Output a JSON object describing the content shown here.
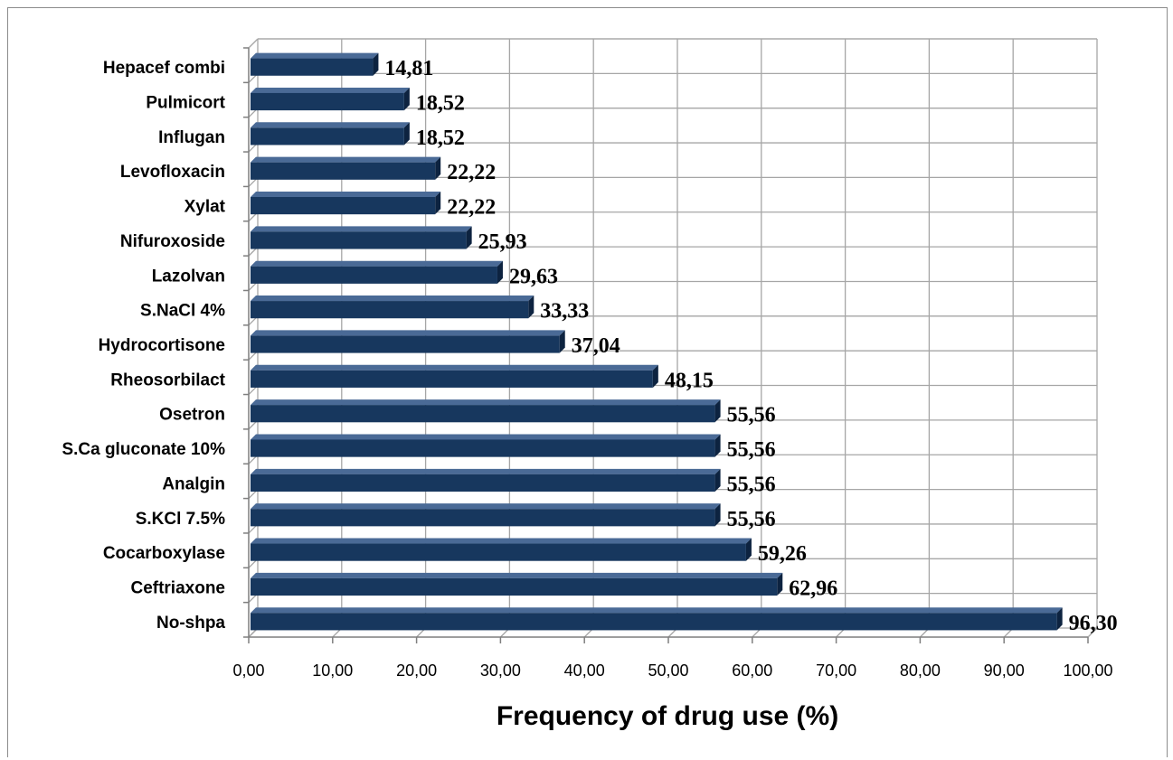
{
  "chart_data": {
    "type": "bar",
    "orientation": "horizontal",
    "style": "3d",
    "categories": [
      "Hepacef combi",
      "Pulmicort",
      "Influgan",
      "Levofloxacin",
      "Xylat",
      "Nifuroxoside",
      "Lazolvan",
      "S.NaCl 4%",
      "Hydrocortisone",
      "Rheosorbilact",
      "Osetron",
      "S.Ca gluconate 10%",
      "Analgin",
      "S.KCl 7.5%",
      "Cocarboxylase",
      "Ceftriaxone",
      "No-shpa"
    ],
    "values": [
      14.81,
      18.52,
      18.52,
      22.22,
      22.22,
      25.93,
      29.63,
      33.33,
      37.04,
      48.15,
      55.56,
      55.56,
      55.56,
      55.56,
      59.26,
      62.96,
      96.3
    ],
    "data_labels": [
      "14,81",
      "18,52",
      "18,52",
      "22,22",
      "22,22",
      "25,93",
      "29,63",
      "33,33",
      "37,04",
      "48,15",
      "55,56",
      "55,56",
      "55,56",
      "55,56",
      "59,26",
      "62,96",
      "96,30"
    ],
    "xlabel": "Frequency of drug use (%)",
    "ylabel": "",
    "xlim": [
      0,
      100
    ],
    "xticks": [
      0,
      10,
      20,
      30,
      40,
      50,
      60,
      70,
      80,
      90,
      100
    ],
    "xtick_labels": [
      "0,00",
      "10,00",
      "20,00",
      "30,00",
      "40,00",
      "50,00",
      "60,00",
      "70,00",
      "80,00",
      "90,00",
      "100,00"
    ],
    "grid": true,
    "legend": "none",
    "colors": {
      "bar": "#17375e",
      "bar_top": "#4a6a96",
      "bar_side": "#0d2340",
      "grid": "#a6a6a6",
      "axis": "#7f7f7f"
    }
  }
}
